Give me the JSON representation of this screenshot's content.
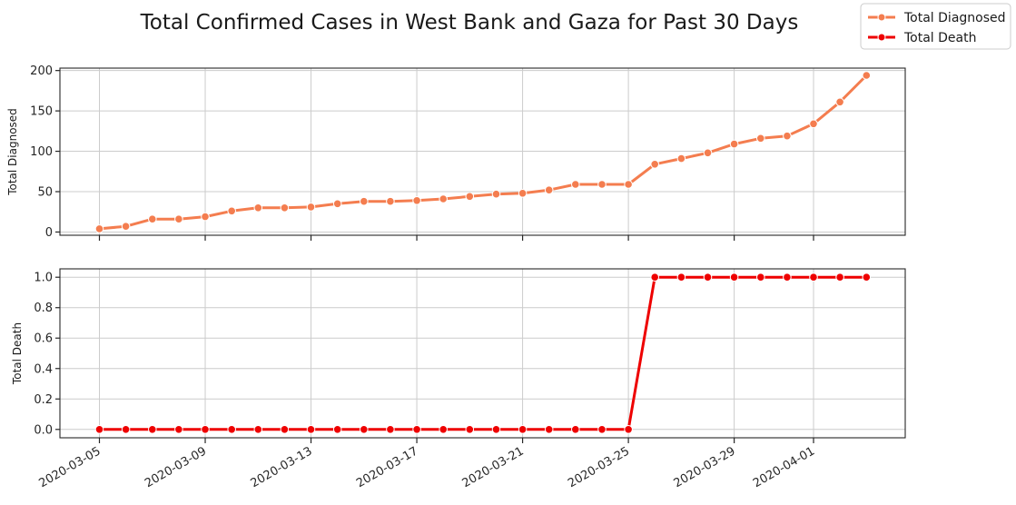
{
  "chart_data": {
    "type": "line",
    "title": "Total Confirmed Cases in West Bank and Gaza for Past 30 Days",
    "x": [
      "2020-03-05",
      "2020-03-06",
      "2020-03-07",
      "2020-03-08",
      "2020-03-09",
      "2020-03-10",
      "2020-03-11",
      "2020-03-12",
      "2020-03-13",
      "2020-03-14",
      "2020-03-15",
      "2020-03-16",
      "2020-03-17",
      "2020-03-18",
      "2020-03-19",
      "2020-03-20",
      "2020-03-21",
      "2020-03-22",
      "2020-03-23",
      "2020-03-24",
      "2020-03-25",
      "2020-03-26",
      "2020-03-27",
      "2020-03-28",
      "2020-03-29",
      "2020-03-30",
      "2020-03-31",
      "2020-04-01",
      "2020-04-02",
      "2020-04-03"
    ],
    "x_tick_labels": [
      "2020-03-05",
      "2020-03-09",
      "2020-03-13",
      "2020-03-17",
      "2020-03-21",
      "2020-03-25",
      "2020-03-29",
      "2020-04-01"
    ],
    "grid": true,
    "legend": "top-right",
    "subplots": [
      {
        "ylabel": "Total Diagnosed",
        "ylim": [
          -4,
          203
        ],
        "yticks": [
          0,
          50,
          100,
          150,
          200
        ],
        "ytick_labels": [
          "0",
          "50",
          "100",
          "150",
          "200"
        ],
        "series": [
          {
            "name": "Total Diagnosed",
            "color": "#f47d4f",
            "values": [
              4,
              7,
              16,
              16,
              19,
              26,
              30,
              30,
              31,
              35,
              38,
              38,
              39,
              41,
              44,
              47,
              48,
              52,
              59,
              59,
              59,
              84,
              91,
              98,
              109,
              116,
              119,
              134,
              161,
              194
            ]
          }
        ]
      },
      {
        "ylabel": "Total Death",
        "ylim": [
          -0.055,
          1.055
        ],
        "yticks": [
          0,
          0.2,
          0.4,
          0.6,
          0.8,
          1.0
        ],
        "ytick_labels": [
          "0.0",
          "0.2",
          "0.4",
          "0.6",
          "0.8",
          "1.0"
        ],
        "series": [
          {
            "name": "Total Death",
            "color": "#ee0000",
            "values": [
              0,
              0,
              0,
              0,
              0,
              0,
              0,
              0,
              0,
              0,
              0,
              0,
              0,
              0,
              0,
              0,
              0,
              0,
              0,
              0,
              0,
              1,
              1,
              1,
              1,
              1,
              1,
              1,
              1,
              1
            ]
          }
        ]
      }
    ]
  }
}
